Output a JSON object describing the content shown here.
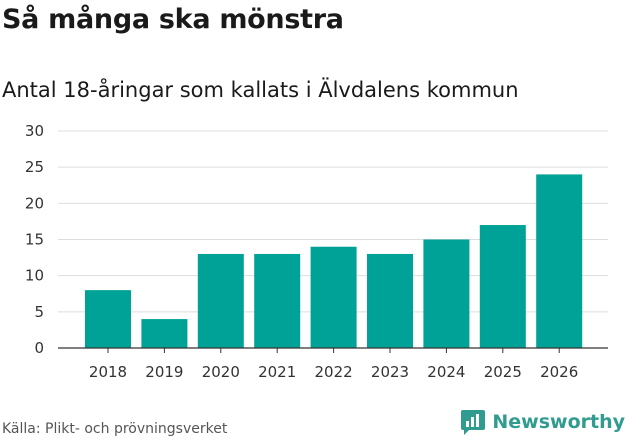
{
  "title": "Så många ska mönstra",
  "subtitle": "Antal 18-åringar som kallats i Älvdalens kommun",
  "source": "Källa: Plikt- och prövningsverket",
  "brand": {
    "name": "Newsworthy",
    "color": "#2f9c8f"
  },
  "chart_data": {
    "type": "bar",
    "categories": [
      "2018",
      "2019",
      "2020",
      "2021",
      "2022",
      "2023",
      "2024",
      "2025",
      "2026"
    ],
    "values": [
      8,
      4,
      13,
      13,
      14,
      13,
      15,
      17,
      24
    ],
    "ylim": [
      0,
      30
    ],
    "yticks": [
      0,
      5,
      10,
      15,
      20,
      25,
      30
    ],
    "grid": true,
    "xlabel": "",
    "ylabel": "",
    "bar_color": "#00a197"
  }
}
